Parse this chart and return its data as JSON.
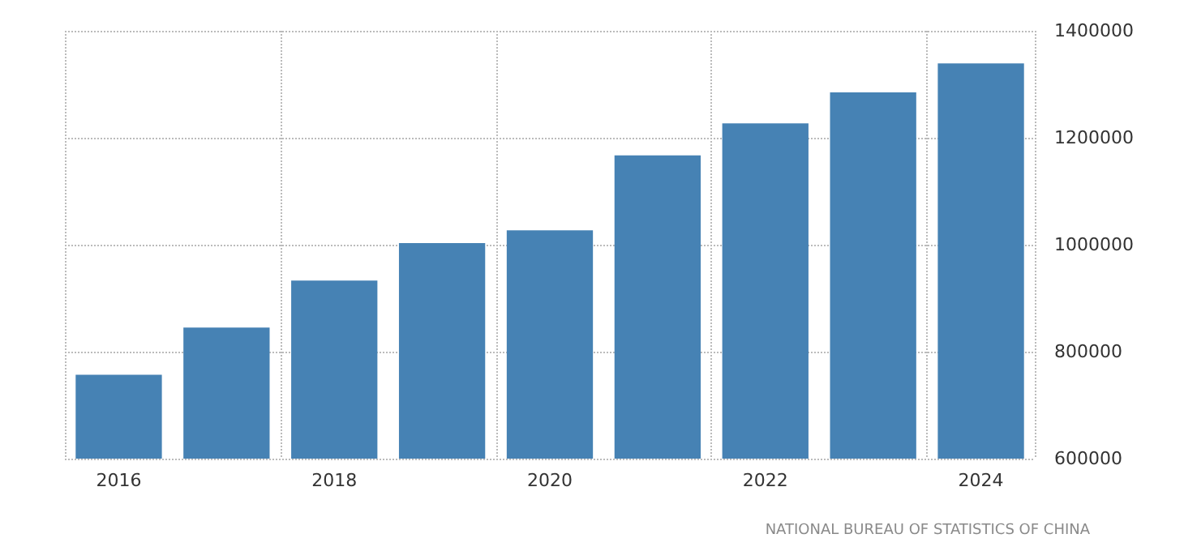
{
  "chart_data": {
    "type": "bar",
    "categories": [
      "2016",
      null,
      "2018",
      null,
      "2020",
      null,
      "2022",
      null,
      "2024"
    ],
    "values": [
      757000,
      845000,
      933000,
      1003000,
      1027000,
      1167000,
      1227000,
      1285000,
      1339000
    ],
    "color": "#4682b4",
    "ylim": [
      600000,
      1400000
    ],
    "yticks": [
      600000,
      800000,
      1000000,
      1200000,
      1400000
    ],
    "grid": true,
    "annotations": [
      "NATIONAL BUREAU OF STATISTICS OF CHINA"
    ]
  }
}
